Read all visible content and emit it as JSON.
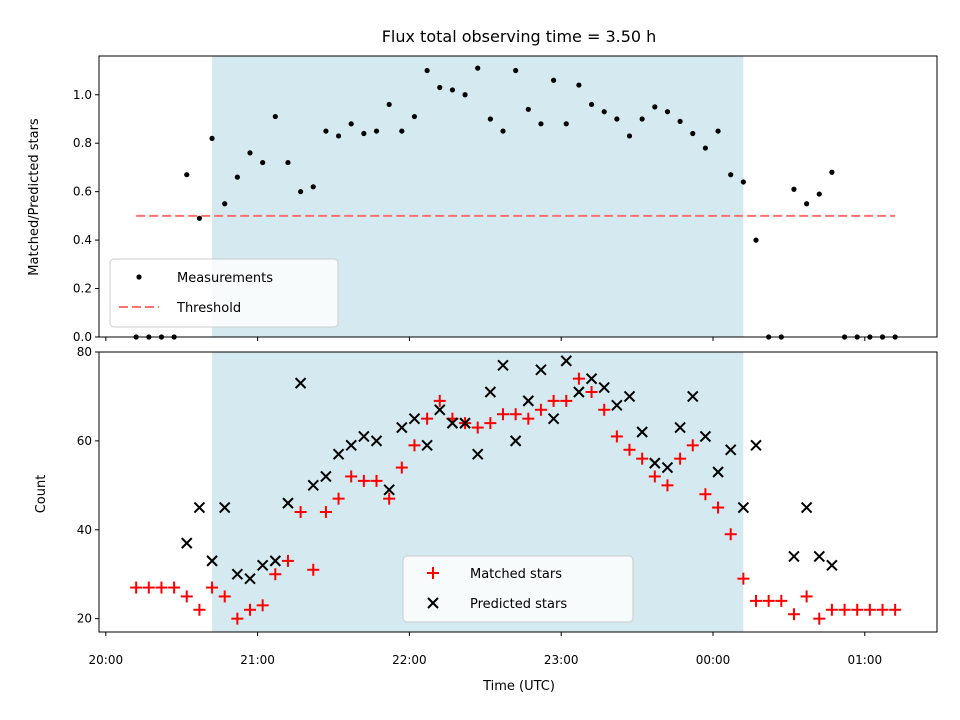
{
  "chart_data": [
    {
      "type": "scatter",
      "title": "Flux total observing time = 3.50 h",
      "ylabel": "Matched/Predicted stars",
      "ylim": [
        0,
        1.16
      ],
      "yticks": [
        0.0,
        0.2,
        0.4,
        0.6,
        0.8,
        1.0
      ],
      "ytick_labels": [
        "0.0",
        "0.2",
        "0.4",
        "0.6",
        "0.8",
        "1.0"
      ],
      "shaded_span": [
        "20:42",
        "00:12"
      ],
      "shade_color": "#d4eaf0",
      "legend": {
        "placement": "lower-left",
        "entries": [
          "Measurements",
          "Threshold"
        ]
      },
      "series": [
        {
          "name": "Measurements",
          "color": "#000000",
          "points": [
            [
              "20:12",
              0.0
            ],
            [
              "20:17",
              0.0
            ],
            [
              "20:22",
              0.0
            ],
            [
              "20:27",
              0.0
            ],
            [
              "20:32",
              0.67
            ],
            [
              "20:37",
              0.49
            ],
            [
              "20:42",
              0.82
            ],
            [
              "20:47",
              0.55
            ],
            [
              "20:52",
              0.66
            ],
            [
              "20:57",
              0.76
            ],
            [
              "21:02",
              0.72
            ],
            [
              "21:07",
              0.91
            ],
            [
              "21:12",
              0.72
            ],
            [
              "21:17",
              0.6
            ],
            [
              "21:22",
              0.62
            ],
            [
              "21:27",
              0.85
            ],
            [
              "21:32",
              0.83
            ],
            [
              "21:37",
              0.88
            ],
            [
              "21:42",
              0.84
            ],
            [
              "21:47",
              0.85
            ],
            [
              "21:52",
              0.96
            ],
            [
              "21:57",
              0.85
            ],
            [
              "22:02",
              0.91
            ],
            [
              "22:07",
              1.1
            ],
            [
              "22:12",
              1.03
            ],
            [
              "22:17",
              1.02
            ],
            [
              "22:22",
              1.0
            ],
            [
              "22:27",
              1.11
            ],
            [
              "22:32",
              0.9
            ],
            [
              "22:37",
              0.85
            ],
            [
              "22:42",
              1.1
            ],
            [
              "22:47",
              0.94
            ],
            [
              "22:52",
              0.88
            ],
            [
              "22:57",
              1.06
            ],
            [
              "23:02",
              0.88
            ],
            [
              "23:07",
              1.04
            ],
            [
              "23:12",
              0.96
            ],
            [
              "23:17",
              0.93
            ],
            [
              "23:22",
              0.9
            ],
            [
              "23:27",
              0.83
            ],
            [
              "23:32",
              0.9
            ],
            [
              "23:37",
              0.95
            ],
            [
              "23:42",
              0.93
            ],
            [
              "23:47",
              0.89
            ],
            [
              "23:52",
              0.84
            ],
            [
              "23:57",
              0.78
            ],
            [
              "00:02",
              0.85
            ],
            [
              "00:07",
              0.67
            ],
            [
              "00:12",
              0.64
            ],
            [
              "00:17",
              0.4
            ],
            [
              "00:22",
              0.0
            ],
            [
              "00:27",
              0.0
            ],
            [
              "00:32",
              0.61
            ],
            [
              "00:37",
              0.55
            ],
            [
              "00:42",
              0.59
            ],
            [
              "00:47",
              0.68
            ],
            [
              "00:52",
              0.0
            ],
            [
              "00:57",
              0.0
            ],
            [
              "01:02",
              0.0
            ],
            [
              "01:07",
              0.0
            ],
            [
              "01:12",
              0.0
            ]
          ]
        },
        {
          "name": "Threshold",
          "color": "#ff7070",
          "style": "dashed",
          "points": [
            [
              "20:12",
              0.5
            ],
            [
              "01:12",
              0.5
            ]
          ]
        }
      ]
    },
    {
      "type": "scatter",
      "xlabel": "Time (UTC)",
      "ylabel": "Count",
      "ylim": [
        17,
        80
      ],
      "yticks": [
        20,
        40,
        60,
        80
      ],
      "ytick_labels": [
        "20",
        "40",
        "60",
        "80"
      ],
      "xticks": [
        "20:00",
        "21:00",
        "22:00",
        "23:00",
        "00:00",
        "01:00"
      ],
      "xtick_labels": [
        "20:00",
        "21:00",
        "22:00",
        "23:00",
        "00:00",
        "01:00"
      ],
      "shaded_span": [
        "20:42",
        "00:12"
      ],
      "legend": {
        "placement": "lower-center",
        "entries": [
          "Matched stars",
          "Predicted stars"
        ]
      },
      "series": [
        {
          "name": "Matched stars",
          "color": "#ff0000",
          "marker": "+",
          "points": [
            [
              "20:12",
              27
            ],
            [
              "20:17",
              27
            ],
            [
              "20:22",
              27
            ],
            [
              "20:27",
              27
            ],
            [
              "20:32",
              25
            ],
            [
              "20:37",
              22
            ],
            [
              "20:42",
              27
            ],
            [
              "20:47",
              25
            ],
            [
              "20:52",
              20
            ],
            [
              "20:57",
              22
            ],
            [
              "21:02",
              23
            ],
            [
              "21:07",
              30
            ],
            [
              "21:12",
              33
            ],
            [
              "21:17",
              44
            ],
            [
              "21:22",
              31
            ],
            [
              "21:27",
              44
            ],
            [
              "21:32",
              47
            ],
            [
              "21:37",
              52
            ],
            [
              "21:42",
              51
            ],
            [
              "21:47",
              51
            ],
            [
              "21:52",
              47
            ],
            [
              "21:57",
              54
            ],
            [
              "22:02",
              59
            ],
            [
              "22:07",
              65
            ],
            [
              "22:12",
              69
            ],
            [
              "22:17",
              65
            ],
            [
              "22:22",
              64
            ],
            [
              "22:27",
              63
            ],
            [
              "22:32",
              64
            ],
            [
              "22:37",
              66
            ],
            [
              "22:42",
              66
            ],
            [
              "22:47",
              65
            ],
            [
              "22:52",
              67
            ],
            [
              "22:57",
              69
            ],
            [
              "23:02",
              69
            ],
            [
              "23:07",
              74
            ],
            [
              "23:12",
              71
            ],
            [
              "23:17",
              67
            ],
            [
              "23:22",
              61
            ],
            [
              "23:27",
              58
            ],
            [
              "23:32",
              56
            ],
            [
              "23:37",
              52
            ],
            [
              "23:42",
              50
            ],
            [
              "23:47",
              56
            ],
            [
              "23:52",
              59
            ],
            [
              "23:57",
              48
            ],
            [
              "00:02",
              45
            ],
            [
              "00:07",
              39
            ],
            [
              "00:12",
              29
            ],
            [
              "00:17",
              24
            ],
            [
              "00:22",
              24
            ],
            [
              "00:27",
              24
            ],
            [
              "00:32",
              21
            ],
            [
              "00:37",
              25
            ],
            [
              "00:42",
              20
            ],
            [
              "00:47",
              22
            ],
            [
              "00:52",
              22
            ],
            [
              "00:57",
              22
            ],
            [
              "01:02",
              22
            ],
            [
              "01:07",
              22
            ],
            [
              "01:12",
              22
            ]
          ]
        },
        {
          "name": "Predicted stars",
          "color": "#000000",
          "marker": "x",
          "points": [
            [
              "20:32",
              37
            ],
            [
              "20:37",
              45
            ],
            [
              "20:42",
              33
            ],
            [
              "20:47",
              45
            ],
            [
              "20:52",
              30
            ],
            [
              "20:57",
              29
            ],
            [
              "21:02",
              32
            ],
            [
              "21:07",
              33
            ],
            [
              "21:12",
              46
            ],
            [
              "21:17",
              73
            ],
            [
              "21:22",
              50
            ],
            [
              "21:27",
              52
            ],
            [
              "21:32",
              57
            ],
            [
              "21:37",
              59
            ],
            [
              "21:42",
              61
            ],
            [
              "21:47",
              60
            ],
            [
              "21:52",
              49
            ],
            [
              "21:57",
              63
            ],
            [
              "22:02",
              65
            ],
            [
              "22:07",
              59
            ],
            [
              "22:12",
              67
            ],
            [
              "22:17",
              64
            ],
            [
              "22:22",
              64
            ],
            [
              "22:27",
              57
            ],
            [
              "22:32",
              71
            ],
            [
              "22:37",
              77
            ],
            [
              "22:42",
              60
            ],
            [
              "22:47",
              69
            ],
            [
              "22:52",
              76
            ],
            [
              "22:57",
              65
            ],
            [
              "23:02",
              78
            ],
            [
              "23:07",
              71
            ],
            [
              "23:12",
              74
            ],
            [
              "23:17",
              72
            ],
            [
              "23:22",
              68
            ],
            [
              "23:27",
              70
            ],
            [
              "23:32",
              62
            ],
            [
              "23:37",
              55
            ],
            [
              "23:42",
              54
            ],
            [
              "23:47",
              63
            ],
            [
              "23:52",
              70
            ],
            [
              "23:57",
              61
            ],
            [
              "00:02",
              53
            ],
            [
              "00:07",
              58
            ],
            [
              "00:12",
              45
            ],
            [
              "00:17",
              59
            ],
            [
              "00:32",
              34
            ],
            [
              "00:37",
              45
            ],
            [
              "00:42",
              34
            ],
            [
              "00:47",
              32
            ]
          ]
        }
      ]
    }
  ]
}
